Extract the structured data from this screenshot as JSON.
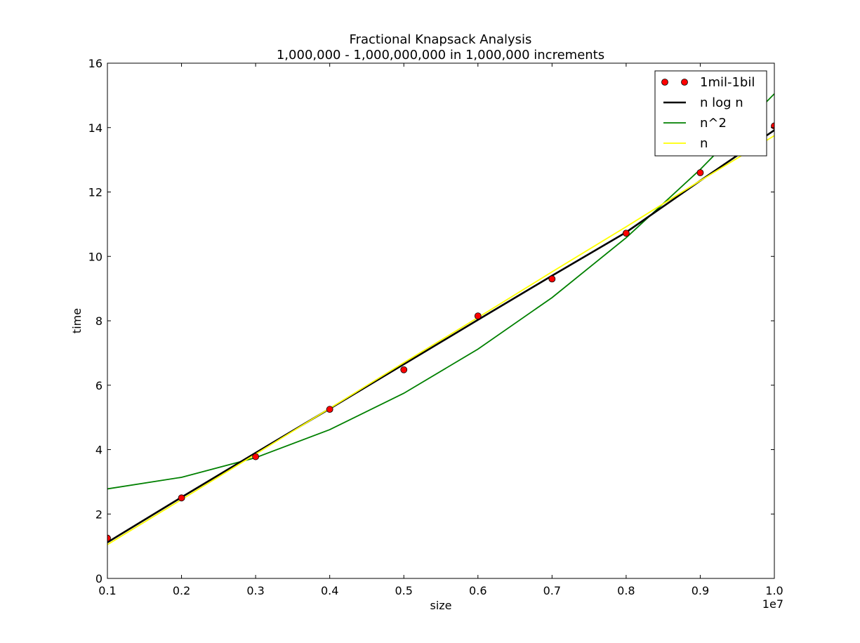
{
  "chart_data": {
    "type": "line",
    "title": "Fractional Knapsack Analysis",
    "subtitle": "1,000,000 - 1,000,000,000 in 1,000,000 increments",
    "xlabel": "size",
    "ylabel": "time",
    "x_offset_label": "1e7",
    "xlim": [
      0.1,
      1.0
    ],
    "ylim": [
      0,
      16
    ],
    "x_ticks": [
      "0.1",
      "0.2",
      "0.3",
      "0.4",
      "0.5",
      "0.6",
      "0.7",
      "0.8",
      "0.9",
      "1.0"
    ],
    "y_ticks": [
      "0",
      "2",
      "4",
      "6",
      "8",
      "10",
      "12",
      "14",
      "16"
    ],
    "x": [
      0.1,
      0.2,
      0.3,
      0.4,
      0.5,
      0.6,
      0.7,
      0.8,
      0.9,
      1.0
    ],
    "grid": false,
    "legend_position": "top-right",
    "series": [
      {
        "name": "1mil-1bil",
        "style": "markers",
        "color": "#ff0000",
        "values": [
          1.25,
          2.5,
          3.78,
          5.25,
          6.48,
          8.15,
          9.3,
          10.72,
          12.6,
          14.05
        ]
      },
      {
        "name": "n log n",
        "style": "line",
        "color": "#000000",
        "values": [
          1.12,
          2.52,
          3.9,
          5.27,
          6.65,
          8.03,
          9.4,
          10.75,
          12.35,
          13.92
        ]
      },
      {
        "name": "n^2",
        "style": "line",
        "color": "#008000",
        "values": [
          2.78,
          3.14,
          3.75,
          4.62,
          5.75,
          7.12,
          8.72,
          10.58,
          12.7,
          15.05
        ]
      },
      {
        "name": "n",
        "style": "line",
        "color": "#ffff00",
        "values": [
          1.05,
          2.45,
          3.86,
          5.28,
          6.7,
          8.1,
          9.52,
          10.92,
          12.35,
          13.75
        ]
      }
    ]
  }
}
